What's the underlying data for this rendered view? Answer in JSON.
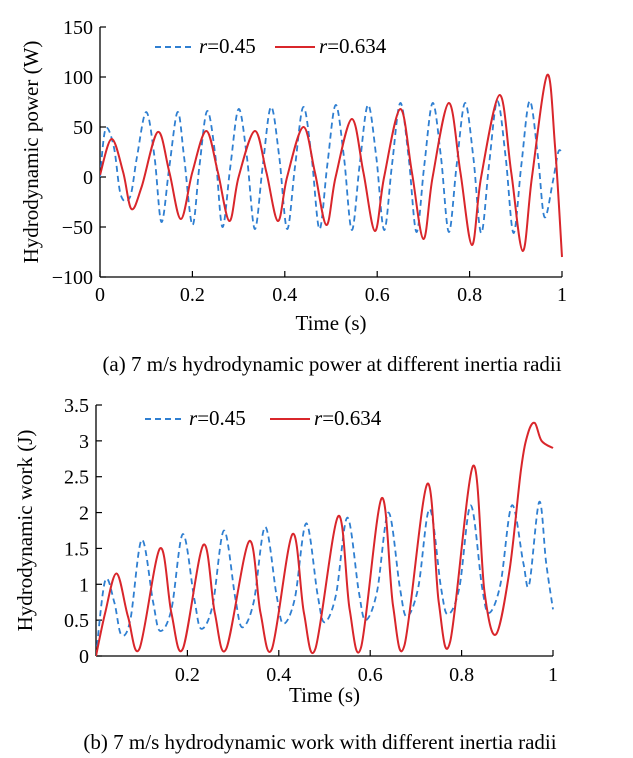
{
  "colors": {
    "r045": "#2f7fd1",
    "r0634": "#d9262b",
    "axis": "#000000"
  },
  "chart_data": [
    {
      "type": "line",
      "id": "a",
      "caption": "(a) 7 m/s hydrodynamic power at different inertia radii",
      "xlabel": "Time (s)",
      "ylabel": "Hydrodynamic power (W)",
      "xlim": [
        0,
        1
      ],
      "ylim": [
        -100,
        150
      ],
      "xticks": [
        0,
        0.2,
        0.4,
        0.6,
        0.8,
        1
      ],
      "xtick_labels": [
        "0",
        "0.2",
        "0.4",
        "0.6",
        "0.8",
        "1"
      ],
      "yticks": [
        -100,
        -50,
        0,
        50,
        100,
        150
      ],
      "ytick_labels": [
        "−100",
        "−50",
        "0",
        "50",
        "100",
        "150"
      ],
      "legend": [
        {
          "var": "r",
          "value": "=0.45",
          "style": "dashed",
          "color": "#2f7fd1"
        },
        {
          "var": "r",
          "value": "=0.634",
          "style": "solid",
          "color": "#d9262b"
        }
      ],
      "series": [
        {
          "name": "r=0.45",
          "style": "dashed",
          "color": "#2f7fd1",
          "points": [
            [
              0,
              0
            ],
            [
              0.012,
              48
            ],
            [
              0.03,
              30
            ],
            [
              0.045,
              -18
            ],
            [
              0.065,
              -20
            ],
            [
              0.08,
              20
            ],
            [
              0.1,
              65
            ],
            [
              0.118,
              20
            ],
            [
              0.133,
              -45
            ],
            [
              0.15,
              10
            ],
            [
              0.168,
              65
            ],
            [
              0.182,
              20
            ],
            [
              0.2,
              -48
            ],
            [
              0.215,
              10
            ],
            [
              0.232,
              66
            ],
            [
              0.25,
              20
            ],
            [
              0.265,
              -50
            ],
            [
              0.282,
              10
            ],
            [
              0.3,
              68
            ],
            [
              0.318,
              20
            ],
            [
              0.335,
              -52
            ],
            [
              0.352,
              10
            ],
            [
              0.37,
              70
            ],
            [
              0.388,
              20
            ],
            [
              0.405,
              -52
            ],
            [
              0.422,
              10
            ],
            [
              0.44,
              70
            ],
            [
              0.458,
              20
            ],
            [
              0.475,
              -52
            ],
            [
              0.492,
              12
            ],
            [
              0.51,
              72
            ],
            [
              0.528,
              20
            ],
            [
              0.545,
              -53
            ],
            [
              0.562,
              12
            ],
            [
              0.58,
              72
            ],
            [
              0.598,
              20
            ],
            [
              0.615,
              -53
            ],
            [
              0.632,
              12
            ],
            [
              0.65,
              74
            ],
            [
              0.668,
              20
            ],
            [
              0.685,
              -55
            ],
            [
              0.702,
              12
            ],
            [
              0.72,
              74
            ],
            [
              0.738,
              20
            ],
            [
              0.755,
              -55
            ],
            [
              0.772,
              12
            ],
            [
              0.79,
              74
            ],
            [
              0.808,
              20
            ],
            [
              0.825,
              -56
            ],
            [
              0.842,
              12
            ],
            [
              0.86,
              76
            ],
            [
              0.878,
              20
            ],
            [
              0.895,
              -56
            ],
            [
              0.912,
              12
            ],
            [
              0.93,
              76
            ],
            [
              0.948,
              20
            ],
            [
              0.962,
              -40
            ],
            [
              0.98,
              -5
            ],
            [
              0.992,
              25
            ],
            [
              1,
              24
            ]
          ]
        },
        {
          "name": "r=0.634",
          "style": "solid",
          "color": "#d9262b",
          "points": [
            [
              0,
              2
            ],
            [
              0.025,
              38
            ],
            [
              0.05,
              5
            ],
            [
              0.068,
              -32
            ],
            [
              0.09,
              -10
            ],
            [
              0.125,
              45
            ],
            [
              0.15,
              5
            ],
            [
              0.175,
              -42
            ],
            [
              0.2,
              5
            ],
            [
              0.23,
              46
            ],
            [
              0.255,
              5
            ],
            [
              0.28,
              -44
            ],
            [
              0.3,
              0
            ],
            [
              0.335,
              46
            ],
            [
              0.36,
              5
            ],
            [
              0.385,
              -44
            ],
            [
              0.405,
              0
            ],
            [
              0.44,
              50
            ],
            [
              0.465,
              5
            ],
            [
              0.49,
              -48
            ],
            [
              0.51,
              0
            ],
            [
              0.545,
              58
            ],
            [
              0.57,
              5
            ],
            [
              0.595,
              -54
            ],
            [
              0.615,
              0
            ],
            [
              0.65,
              68
            ],
            [
              0.675,
              5
            ],
            [
              0.7,
              -62
            ],
            [
              0.72,
              0
            ],
            [
              0.755,
              74
            ],
            [
              0.78,
              5
            ],
            [
              0.805,
              -68
            ],
            [
              0.825,
              0
            ],
            [
              0.865,
              82
            ],
            [
              0.89,
              5
            ],
            [
              0.915,
              -74
            ],
            [
              0.935,
              0
            ],
            [
              0.968,
              102
            ],
            [
              0.985,
              30
            ],
            [
              1,
              -80
            ]
          ]
        }
      ]
    },
    {
      "type": "line",
      "id": "b",
      "caption": "(b) 7 m/s hydrodynamic work with different inertia radii",
      "xlabel": "Time (s)",
      "ylabel": "Hydrodynamic work (J)",
      "xlim": [
        0,
        1
      ],
      "ylim": [
        0,
        3.5
      ],
      "xticks": [
        0.2,
        0.4,
        0.6,
        0.8,
        1
      ],
      "xtick_labels": [
        "0.2",
        "0.4",
        "0.6",
        "0.8",
        "1"
      ],
      "yticks": [
        0,
        0.5,
        1,
        1.5,
        2,
        2.5,
        3,
        3.5
      ],
      "ytick_labels": [
        "0",
        "0.5",
        "1",
        "1.5",
        "2",
        "2.5",
        "3",
        "3.5"
      ],
      "legend": [
        {
          "var": "r",
          "value": "=0.45",
          "style": "dashed",
          "color": "#2f7fd1"
        },
        {
          "var": "r",
          "value": "=0.634",
          "style": "solid",
          "color": "#d9262b"
        }
      ],
      "series": [
        {
          "name": "r=0.45",
          "style": "dashed",
          "color": "#2f7fd1",
          "points": [
            [
              0,
              0
            ],
            [
              0.02,
              1.05
            ],
            [
              0.04,
              0.75
            ],
            [
              0.055,
              0.3
            ],
            [
              0.075,
              0.5
            ],
            [
              0.1,
              1.62
            ],
            [
              0.125,
              0.75
            ],
            [
              0.14,
              0.35
            ],
            [
              0.165,
              0.65
            ],
            [
              0.19,
              1.7
            ],
            [
              0.215,
              0.8
            ],
            [
              0.23,
              0.38
            ],
            [
              0.255,
              0.7
            ],
            [
              0.28,
              1.75
            ],
            [
              0.305,
              0.8
            ],
            [
              0.32,
              0.4
            ],
            [
              0.345,
              0.75
            ],
            [
              0.37,
              1.8
            ],
            [
              0.395,
              0.85
            ],
            [
              0.41,
              0.45
            ],
            [
              0.435,
              0.8
            ],
            [
              0.46,
              1.85
            ],
            [
              0.485,
              0.85
            ],
            [
              0.5,
              0.47
            ],
            [
              0.525,
              0.85
            ],
            [
              0.55,
              1.93
            ],
            [
              0.575,
              0.9
            ],
            [
              0.59,
              0.5
            ],
            [
              0.615,
              0.9
            ],
            [
              0.64,
              2.0
            ],
            [
              0.665,
              0.95
            ],
            [
              0.68,
              0.55
            ],
            [
              0.705,
              0.95
            ],
            [
              0.73,
              2.05
            ],
            [
              0.755,
              0.95
            ],
            [
              0.77,
              0.58
            ],
            [
              0.795,
              0.95
            ],
            [
              0.82,
              2.1
            ],
            [
              0.845,
              0.95
            ],
            [
              0.86,
              0.6
            ],
            [
              0.885,
              1.0
            ],
            [
              0.91,
              2.1
            ],
            [
              0.935,
              1.3
            ],
            [
              0.948,
              1.0
            ],
            [
              0.97,
              2.15
            ],
            [
              0.985,
              1.3
            ],
            [
              1,
              0.65
            ]
          ]
        },
        {
          "name": "r=0.634",
          "style": "solid",
          "color": "#d9262b",
          "points": [
            [
              0,
              0
            ],
            [
              0.02,
              0.6
            ],
            [
              0.045,
              1.15
            ],
            [
              0.07,
              0.55
            ],
            [
              0.095,
              0.1
            ],
            [
              0.14,
              1.5
            ],
            [
              0.165,
              0.6
            ],
            [
              0.19,
              0.1
            ],
            [
              0.235,
              1.55
            ],
            [
              0.26,
              0.6
            ],
            [
              0.285,
              0.1
            ],
            [
              0.335,
              1.6
            ],
            [
              0.36,
              0.6
            ],
            [
              0.385,
              0.1
            ],
            [
              0.43,
              1.7
            ],
            [
              0.455,
              0.6
            ],
            [
              0.48,
              0.1
            ],
            [
              0.53,
              1.95
            ],
            [
              0.555,
              0.65
            ],
            [
              0.58,
              0.12
            ],
            [
              0.625,
              2.2
            ],
            [
              0.65,
              0.7
            ],
            [
              0.675,
              0.15
            ],
            [
              0.725,
              2.4
            ],
            [
              0.75,
              0.75
            ],
            [
              0.775,
              0.2
            ],
            [
              0.825,
              2.65
            ],
            [
              0.85,
              0.9
            ],
            [
              0.875,
              0.3
            ],
            [
              0.905,
              1.2
            ],
            [
              0.93,
              2.6
            ],
            [
              0.945,
              3.1
            ],
            [
              0.96,
              3.25
            ],
            [
              0.975,
              3.0
            ],
            [
              1,
              2.9
            ]
          ]
        }
      ]
    }
  ]
}
